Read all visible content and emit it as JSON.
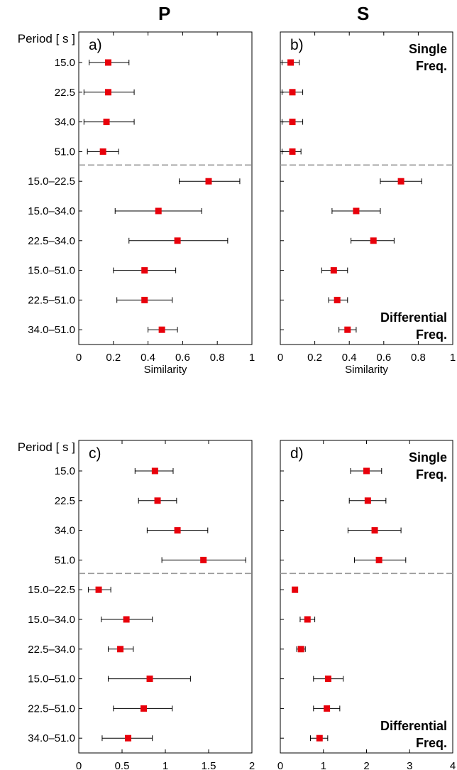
{
  "column_titles": [
    "P",
    "S"
  ],
  "row_header": "Period [ s ]",
  "annotations": {
    "single": [
      "Single",
      "Freq."
    ],
    "differential": [
      "Differential",
      "Freq."
    ]
  },
  "colors": {
    "marker": "#e8000b",
    "errorbar": "#000000",
    "divider": "#999999"
  },
  "chart_data": [
    {
      "panel_label": "a)",
      "column": "P",
      "type": "scatter",
      "xlabel": "Similarity",
      "xlim": [
        0,
        1
      ],
      "xticks": [
        "0",
        "0.2",
        "0.4",
        "0.6",
        "0.8",
        "1"
      ],
      "categories": [
        "15.0",
        "22.5",
        "34.0",
        "51.0",
        "15.0–22.5",
        "15.0–34.0",
        "22.5–34.0",
        "15.0–51.0",
        "22.5–51.0",
        "34.0–51.0"
      ],
      "values": [
        0.17,
        0.17,
        0.16,
        0.14,
        0.75,
        0.46,
        0.57,
        0.38,
        0.38,
        0.48
      ],
      "err_low": [
        0.06,
        0.03,
        0.03,
        0.05,
        0.58,
        0.21,
        0.29,
        0.2,
        0.22,
        0.4
      ],
      "err_high": [
        0.29,
        0.32,
        0.32,
        0.23,
        0.93,
        0.71,
        0.86,
        0.56,
        0.54,
        0.57
      ],
      "has_row_labels": true,
      "show_single_label": false,
      "show_diff_label": false
    },
    {
      "panel_label": "b)",
      "column": "S",
      "type": "scatter",
      "xlabel": "Similarity",
      "xlim": [
        0,
        1
      ],
      "xticks": [
        "0",
        "0.2",
        "0.4",
        "0.6",
        "0.8",
        "1"
      ],
      "categories": [
        "15.0",
        "22.5",
        "34.0",
        "51.0",
        "15.0–22.5",
        "15.0–34.0",
        "22.5–34.0",
        "15.0–51.0",
        "22.5–51.0",
        "34.0–51.0"
      ],
      "values": [
        0.06,
        0.07,
        0.07,
        0.07,
        0.7,
        0.44,
        0.54,
        0.31,
        0.33,
        0.39
      ],
      "err_low": [
        0.01,
        0.01,
        0.01,
        0.01,
        0.58,
        0.3,
        0.41,
        0.24,
        0.28,
        0.34
      ],
      "err_high": [
        0.11,
        0.13,
        0.13,
        0.12,
        0.82,
        0.58,
        0.66,
        0.39,
        0.39,
        0.44
      ],
      "has_row_labels": false,
      "show_single_label": true,
      "show_diff_label": true
    },
    {
      "panel_label": "c)",
      "column": "P",
      "type": "scatter",
      "xlabel": "RMS difference [ s ]",
      "xlim": [
        0,
        2
      ],
      "xticks": [
        "0",
        "0.5",
        "1",
        "1.5",
        "2"
      ],
      "categories": [
        "15.0",
        "22.5",
        "34.0",
        "51.0",
        "15.0–22.5",
        "15.0–34.0",
        "22.5–34.0",
        "15.0–51.0",
        "22.5–51.0",
        "34.0–51.0"
      ],
      "values": [
        0.88,
        0.91,
        1.14,
        1.44,
        0.23,
        0.55,
        0.48,
        0.82,
        0.75,
        0.57
      ],
      "err_low": [
        0.65,
        0.69,
        0.79,
        0.96,
        0.11,
        0.26,
        0.34,
        0.34,
        0.4,
        0.27
      ],
      "err_high": [
        1.09,
        1.13,
        1.49,
        1.93,
        0.37,
        0.85,
        0.63,
        1.29,
        1.08,
        0.85
      ],
      "has_row_labels": true,
      "show_single_label": false,
      "show_diff_label": false
    },
    {
      "panel_label": "d)",
      "column": "S",
      "type": "scatter",
      "xlabel": "RMS difference [ s ]",
      "xlim": [
        0,
        4
      ],
      "xticks": [
        "0",
        "1",
        "2",
        "3",
        "4"
      ],
      "categories": [
        "15.0",
        "22.5",
        "34.0",
        "51.0",
        "15.0–22.5",
        "15.0–34.0",
        "22.5–34.0",
        "15.0–51.0",
        "22.5–51.0",
        "34.0–51.0"
      ],
      "values": [
        2.0,
        2.03,
        2.19,
        2.29,
        0.34,
        0.63,
        0.48,
        1.11,
        1.08,
        0.91
      ],
      "err_low": [
        1.63,
        1.6,
        1.57,
        1.72,
        0.3,
        0.46,
        0.38,
        0.77,
        0.77,
        0.7
      ],
      "err_high": [
        2.35,
        2.45,
        2.8,
        2.91,
        0.38,
        0.8,
        0.58,
        1.46,
        1.38,
        1.1
      ],
      "has_row_labels": false,
      "show_single_label": true,
      "show_diff_label": true
    }
  ]
}
